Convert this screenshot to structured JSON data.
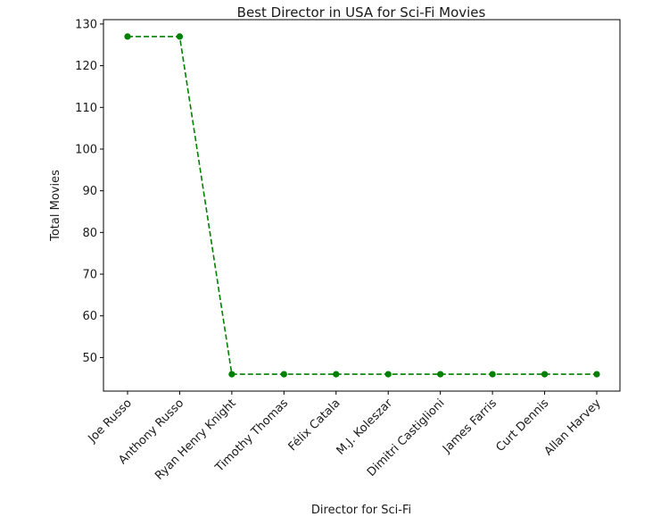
{
  "chart_data": {
    "type": "line",
    "title": "Best Director in USA for Sci-Fi Movies",
    "xlabel": "Director for Sci-Fi",
    "ylabel": "Total Movies",
    "categories": [
      "Joe Russo",
      "Anthony Russo",
      "Ryan Henry Knight",
      "Timothy Thomas",
      "Félix Catala",
      "M.J. Koleszar",
      "Dimitri Castiglioni",
      "James Farris",
      "Curt Dennis",
      "Allan Harvey"
    ],
    "values": [
      127,
      127,
      46,
      46,
      46,
      46,
      46,
      46,
      46,
      46
    ],
    "ylim": [
      41.95,
      131.05
    ],
    "yticks": [
      50,
      60,
      70,
      80,
      90,
      100,
      110,
      120,
      130
    ],
    "line_style": "dashed",
    "marker": "circle",
    "color": "#008000",
    "grid": false
  }
}
